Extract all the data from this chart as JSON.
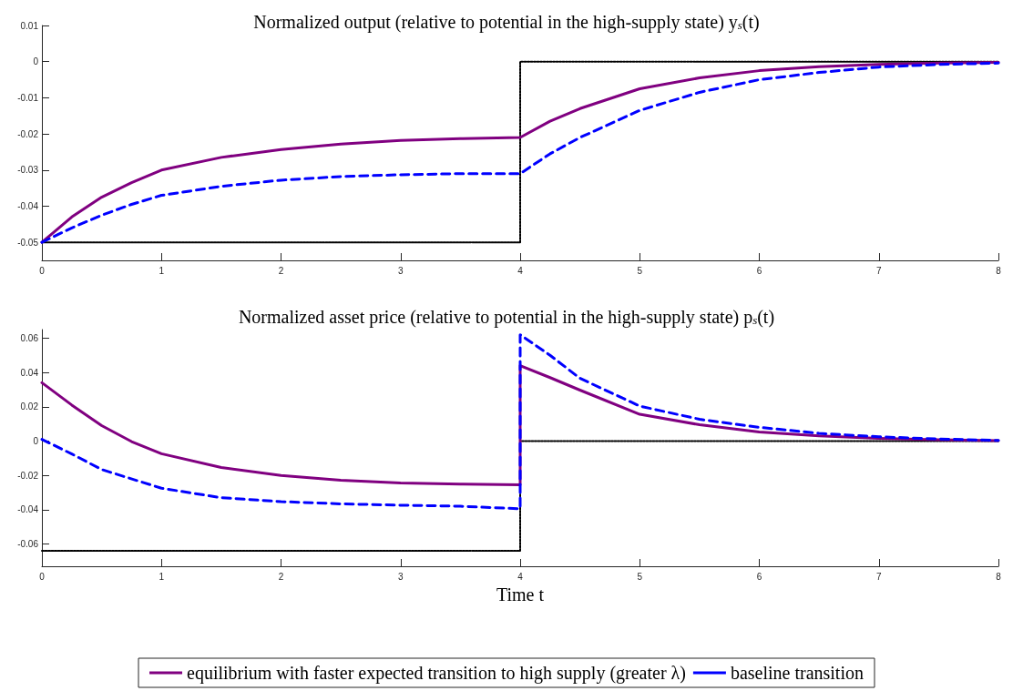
{
  "chart_data": [
    {
      "type": "line",
      "title": "Normalized output (relative to potential in the high-supply state) y$_{s}$(t)",
      "xlim": [
        0,
        8
      ],
      "xticks": [
        0,
        1,
        2,
        3,
        4,
        5,
        6,
        7,
        8
      ],
      "ylim": [
        -0.055,
        0.01
      ],
      "yticks": [
        -0.05,
        -0.04,
        -0.03,
        -0.02,
        -0.01,
        0,
        0.01
      ],
      "grid": false,
      "legend": false,
      "marker": "none",
      "series": [
        {
          "color": "#800080",
          "line_style": "solid",
          "x": [
            0,
            0.25,
            0.5,
            0.75,
            1,
            1.5,
            2,
            2.5,
            3,
            3.5,
            4,
            4.25,
            4.5,
            5,
            5.5,
            6,
            6.5,
            7,
            7.5,
            8
          ],
          "values": [
            -0.05,
            -0.043,
            -0.0375,
            -0.0335,
            -0.03,
            -0.0265,
            -0.0243,
            -0.0228,
            -0.0218,
            -0.0213,
            -0.021,
            -0.0165,
            -0.013,
            -0.0075,
            -0.0045,
            -0.0025,
            -0.0014,
            -0.0008,
            -0.0004,
            -0.0002
          ]
        },
        {
          "color": "#0000ff",
          "line_style": "dashed",
          "x": [
            0,
            0.25,
            0.5,
            0.75,
            1,
            1.5,
            2,
            2.5,
            3,
            3.5,
            4,
            4.25,
            4.5,
            5,
            5.5,
            6,
            6.5,
            7,
            7.5,
            8
          ],
          "values": [
            -0.05,
            -0.046,
            -0.0425,
            -0.0395,
            -0.037,
            -0.0345,
            -0.0328,
            -0.0318,
            -0.0313,
            -0.031,
            -0.031,
            -0.0255,
            -0.021,
            -0.0135,
            -0.0085,
            -0.005,
            -0.003,
            -0.0015,
            -0.0008,
            -0.0004
          ]
        },
        {
          "color": "#000000",
          "line_style": "dotted",
          "x": [
            0,
            4,
            4,
            8
          ],
          "values": [
            -0.05,
            -0.05,
            0,
            0
          ]
        }
      ]
    },
    {
      "type": "line",
      "title": "Normalized asset price (relative to potential in the high-supply state) p$_{s}$(t)",
      "xlabel": "Time t",
      "xlim": [
        0,
        8
      ],
      "xticks": [
        0,
        1,
        2,
        3,
        4,
        5,
        6,
        7,
        8
      ],
      "ylim": [
        -0.073,
        0.065
      ],
      "yticks": [
        -0.06,
        -0.04,
        -0.02,
        0,
        0.02,
        0.04,
        0.06
      ],
      "grid": false,
      "legend": "bottom",
      "marker": "none",
      "series": [
        {
          "name": "equilibrium with faster expected transition to high supply (greater λ)",
          "color": "#800080",
          "line_style": "solid",
          "x": [
            0,
            0.25,
            0.5,
            0.75,
            1,
            1.5,
            2,
            2.5,
            3,
            3.5,
            4,
            4,
            4.25,
            4.5,
            5,
            5.5,
            6,
            6.5,
            7,
            7.5,
            8
          ],
          "values": [
            0.034,
            0.021,
            0.009,
            -0.0003,
            -0.0074,
            -0.0154,
            -0.02,
            -0.0228,
            -0.0244,
            -0.0251,
            -0.0255,
            0.044,
            0.037,
            0.0297,
            0.0156,
            0.0095,
            0.0053,
            0.003,
            0.0016,
            0.0008,
            0.0003
          ]
        },
        {
          "name": "baseline transition",
          "color": "#0000ff",
          "line_style": "dashed",
          "x": [
            0,
            0.25,
            0.5,
            1,
            1.5,
            2,
            2.5,
            3,
            3.5,
            4,
            4,
            4.25,
            4.5,
            5,
            5.5,
            6,
            6.5,
            7,
            7.5,
            8
          ],
          "values": [
            0.001,
            -0.0075,
            -0.0166,
            -0.0275,
            -0.033,
            -0.0353,
            -0.0366,
            -0.0374,
            -0.038,
            -0.0395,
            0.062,
            0.05,
            0.0366,
            0.0204,
            0.0127,
            0.008,
            0.0045,
            0.0025,
            0.0012,
            0.0004
          ]
        },
        {
          "color": "#000000",
          "line_style": "dotted",
          "x": [
            0,
            4,
            4,
            8
          ],
          "values": [
            -0.064,
            -0.064,
            0,
            0
          ]
        }
      ]
    }
  ]
}
